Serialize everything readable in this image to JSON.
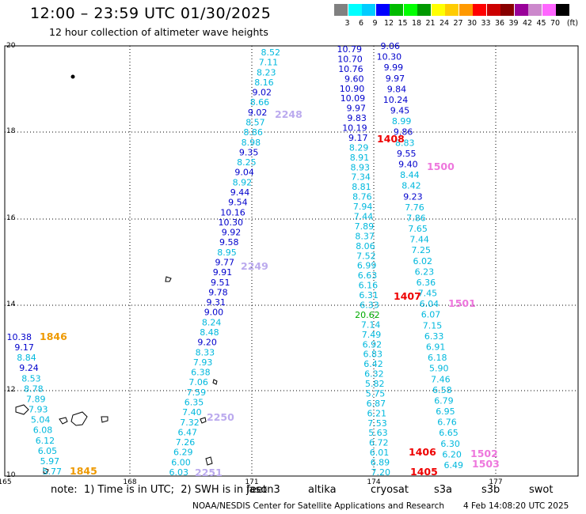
{
  "title": "12:00 – 23:59 UTC 01/30/2025",
  "subtitle": "12 hour collection of altimeter wave heights",
  "legend": {
    "unit": "(ft)",
    "colors": [
      "#808080",
      "#00ffff",
      "#00ccff",
      "#0000ff",
      "#00bb00",
      "#00ff00",
      "#009900",
      "#ffff00",
      "#ffcc00",
      "#ff9900",
      "#ff0000",
      "#cc0000",
      "#880000",
      "#990099",
      "#cc88cc",
      "#ff66ff",
      "#000000"
    ],
    "labels": [
      "3",
      "6",
      "9",
      "12",
      "15",
      "18",
      "21",
      "24",
      "27",
      "30",
      "33",
      "36",
      "39",
      "42",
      "45",
      "70"
    ]
  },
  "axes": {
    "x_ticks": [
      "165",
      "168",
      "171",
      "174",
      "177"
    ],
    "y_ticks": [
      "20",
      "18",
      "16",
      "14",
      "12",
      "10"
    ]
  },
  "track_labels": [
    {
      "text": "2248",
      "color": "#bbaaee"
    },
    {
      "text": "2249",
      "color": "#bbaaee"
    },
    {
      "text": "2250",
      "color": "#bbaaee"
    },
    {
      "text": "2251",
      "color": "#bbaaee"
    },
    {
      "text": "1408",
      "color": "#ee0000"
    },
    {
      "text": "1407",
      "color": "#ee0000"
    },
    {
      "text": "1406",
      "color": "#ee0000"
    },
    {
      "text": "1405",
      "color": "#ee0000"
    },
    {
      "text": "1500",
      "color": "#ee77dd"
    },
    {
      "text": "1501",
      "color": "#ee77dd"
    },
    {
      "text": "1502",
      "color": "#ee77dd"
    },
    {
      "text": "1503",
      "color": "#ee77dd"
    },
    {
      "text": "1846",
      "color": "#ee9900"
    },
    {
      "text": "1845",
      "color": "#ee9900"
    }
  ],
  "tracks": {
    "track_2248_2251": [
      "8.52",
      "7.11",
      "8.23",
      "8.16",
      "9.02",
      "8.66",
      "9.02",
      "8.57",
      "8.86",
      "8.98",
      "9.35",
      "8.25",
      "9.04",
      "8.92",
      "9.44",
      "9.54",
      "10.16",
      "10.30",
      "9.92",
      "9.58",
      "8.95",
      "9.77",
      "9.91",
      "9.51",
      "9.78",
      "9.31",
      "9.00",
      "8.24",
      "8.48",
      "9.20",
      "8.33",
      "7.93",
      "6.38",
      "7.06",
      "7.59",
      "6.35",
      "7.40",
      "7.32",
      "6.47",
      "7.26",
      "6.29",
      "6.00",
      "6.03"
    ],
    "track_1405_1408": [
      "10.79",
      "10.70",
      "10.76",
      "9.60",
      "10.90",
      "10.09",
      "9.97",
      "9.83",
      "10.19",
      "9.17",
      "8.29",
      "8.91",
      "8.93",
      "7.34",
      "8.81",
      "8.76",
      "7.94",
      "7.44",
      "7.89",
      "8.37",
      "8.06",
      "7.52",
      "6.99",
      "6.63",
      "6.16",
      "6.31",
      "6.33",
      "20.62",
      "7.14",
      "7.49",
      "6.92",
      "6.83",
      "6.42",
      "6.32",
      "5.82",
      "5.75",
      "6.87",
      "6.21",
      "7.53",
      "5.63",
      "6.72",
      "6.01",
      "6.89",
      "7.20"
    ],
    "track_1500_1503": [
      "9.06",
      "10.30",
      "9.99",
      "9.97",
      "9.84",
      "10.24",
      "9.45",
      "8.99",
      "9.86",
      "8.83",
      "9.55",
      "9.40",
      "8.44",
      "8.42",
      "9.23",
      "7.76",
      "7.86",
      "7.65",
      "7.44",
      "7.25",
      "6.02",
      "6.23",
      "6.36",
      "7.45",
      "6.04",
      "6.07",
      "7.15",
      "6.33",
      "6.91",
      "6.18",
      "5.90",
      "7.46",
      "6.58",
      "6.79",
      "6.95",
      "6.76",
      "6.65",
      "6.30",
      "6.20",
      "6.49"
    ],
    "track_1845_1846": [
      "10.38",
      "9.17",
      "8.84",
      "9.24",
      "8.53",
      "8.78",
      "7.89",
      "7.93",
      "5.04",
      "6.08",
      "6.12",
      "6.05",
      "5.97",
      "5.77"
    ]
  },
  "note": "note:  1) Time is in UTC;  2) SWH is in feet",
  "satellites": [
    {
      "name": "jason3",
      "color": "#009900"
    },
    {
      "name": "altika",
      "color": "#ee9900"
    },
    {
      "name": "cryosat",
      "color": "#ee0000"
    },
    {
      "name": "s3a",
      "color": "#ee0000"
    },
    {
      "name": "s3b",
      "color": "#bbaaee"
    },
    {
      "name": "swot",
      "color": "#ee77dd"
    }
  ],
  "footer_left": "NOAA/NESDIS Center for Satellite Applications and Research",
  "footer_right": "4 Feb 14:08:20 UTC 2025"
}
